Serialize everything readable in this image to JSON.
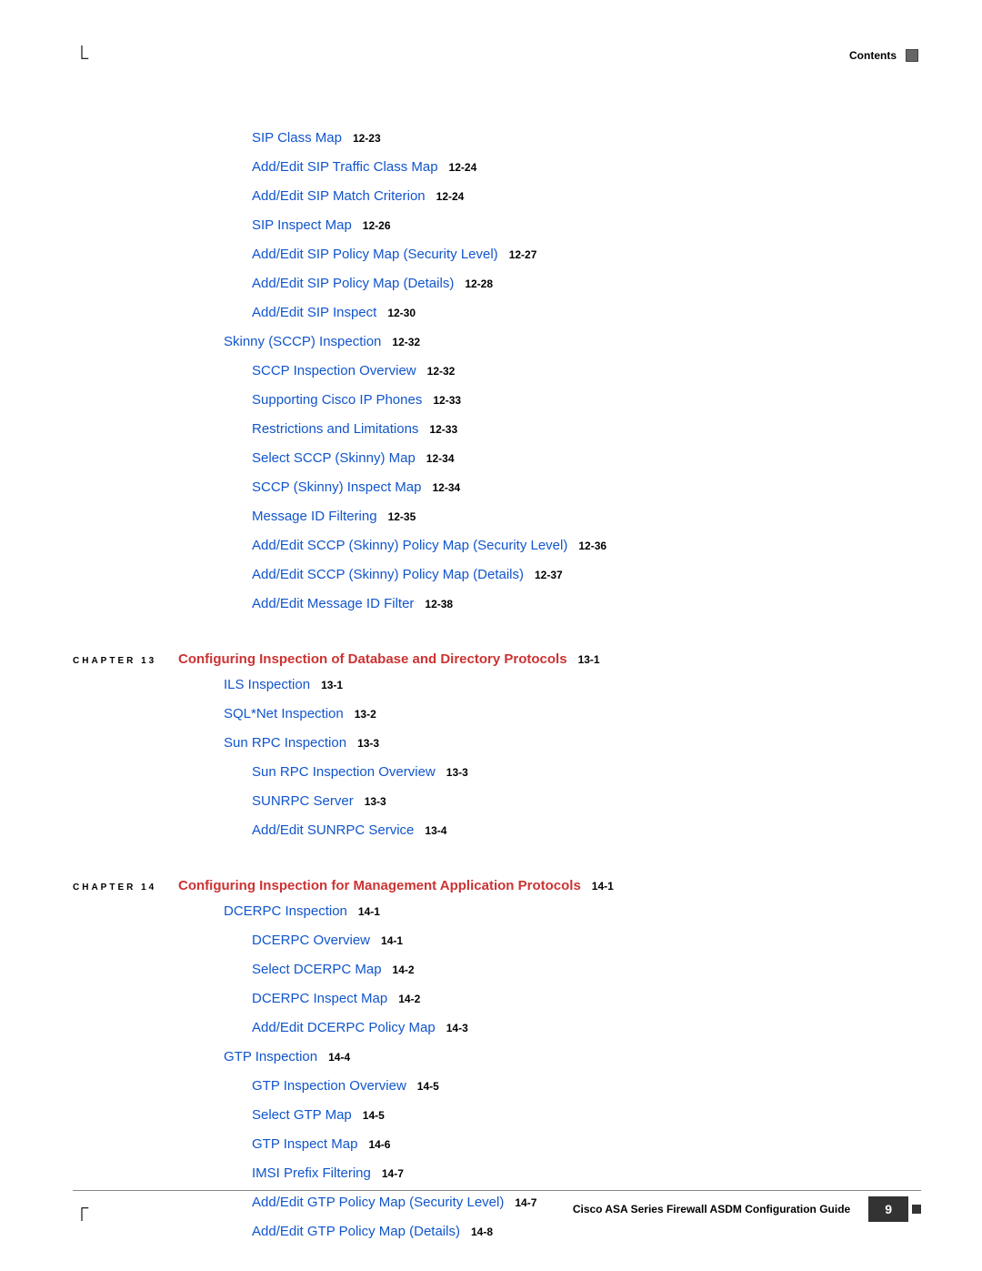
{
  "header": {
    "label": "Contents"
  },
  "toc": {
    "section1_indent3": [
      {
        "title": "SIP Class Map",
        "page": "12-23"
      },
      {
        "title": "Add/Edit SIP Traffic Class Map",
        "page": "12-24"
      },
      {
        "title": "Add/Edit SIP Match Criterion",
        "page": "12-24"
      },
      {
        "title": "SIP Inspect Map",
        "page": "12-26"
      },
      {
        "title": "Add/Edit SIP Policy Map (Security Level)",
        "page": "12-27"
      },
      {
        "title": "Add/Edit SIP Policy Map (Details)",
        "page": "12-28"
      },
      {
        "title": "Add/Edit SIP Inspect",
        "page": "12-30"
      }
    ],
    "section1_l2": {
      "title": "Skinny (SCCP) Inspection",
      "page": "12-32"
    },
    "section1_l2_children": [
      {
        "title": "SCCP Inspection Overview",
        "page": "12-32"
      },
      {
        "title": "Supporting Cisco IP Phones",
        "page": "12-33"
      },
      {
        "title": "Restrictions and Limitations",
        "page": "12-33"
      },
      {
        "title": "Select SCCP (Skinny) Map",
        "page": "12-34"
      },
      {
        "title": "SCCP (Skinny) Inspect Map",
        "page": "12-34"
      },
      {
        "title": "Message ID Filtering",
        "page": "12-35"
      },
      {
        "title": "Add/Edit SCCP (Skinny) Policy Map (Security Level)",
        "page": "12-36"
      },
      {
        "title": "Add/Edit SCCP (Skinny) Policy Map (Details)",
        "page": "12-37"
      },
      {
        "title": "Add/Edit Message ID Filter",
        "page": "12-38"
      }
    ]
  },
  "chapter13": {
    "label": "CHAPTER 13",
    "title": "Configuring Inspection of Database and Directory Protocols",
    "page": "13-1",
    "items_l2": [
      {
        "title": "ILS Inspection",
        "page": "13-1"
      },
      {
        "title": "SQL*Net Inspection",
        "page": "13-2"
      },
      {
        "title": "Sun RPC Inspection",
        "page": "13-3"
      }
    ],
    "items_l3": [
      {
        "title": "Sun RPC Inspection Overview",
        "page": "13-3"
      },
      {
        "title": "SUNRPC Server",
        "page": "13-3"
      },
      {
        "title": "Add/Edit SUNRPC Service",
        "page": "13-4"
      }
    ]
  },
  "chapter14": {
    "label": "CHAPTER 14",
    "title": "Configuring Inspection for Management Application Protocols",
    "page": "14-1",
    "sec1_l2": {
      "title": "DCERPC Inspection",
      "page": "14-1"
    },
    "sec1_l3": [
      {
        "title": "DCERPC Overview",
        "page": "14-1"
      },
      {
        "title": "Select DCERPC Map",
        "page": "14-2"
      },
      {
        "title": "DCERPC Inspect Map",
        "page": "14-2"
      },
      {
        "title": "Add/Edit DCERPC Policy Map",
        "page": "14-3"
      }
    ],
    "sec2_l2": {
      "title": "GTP Inspection",
      "page": "14-4"
    },
    "sec2_l3": [
      {
        "title": "GTP Inspection Overview",
        "page": "14-5"
      },
      {
        "title": "Select GTP Map",
        "page": "14-5"
      },
      {
        "title": "GTP Inspect Map",
        "page": "14-6"
      },
      {
        "title": "IMSI Prefix Filtering",
        "page": "14-7"
      },
      {
        "title": "Add/Edit GTP Policy Map (Security Level)",
        "page": "14-7"
      },
      {
        "title": "Add/Edit GTP Policy Map (Details)",
        "page": "14-8"
      }
    ]
  },
  "footer": {
    "title": "Cisco ASA Series Firewall ASDM Configuration Guide",
    "page_number": "9"
  }
}
